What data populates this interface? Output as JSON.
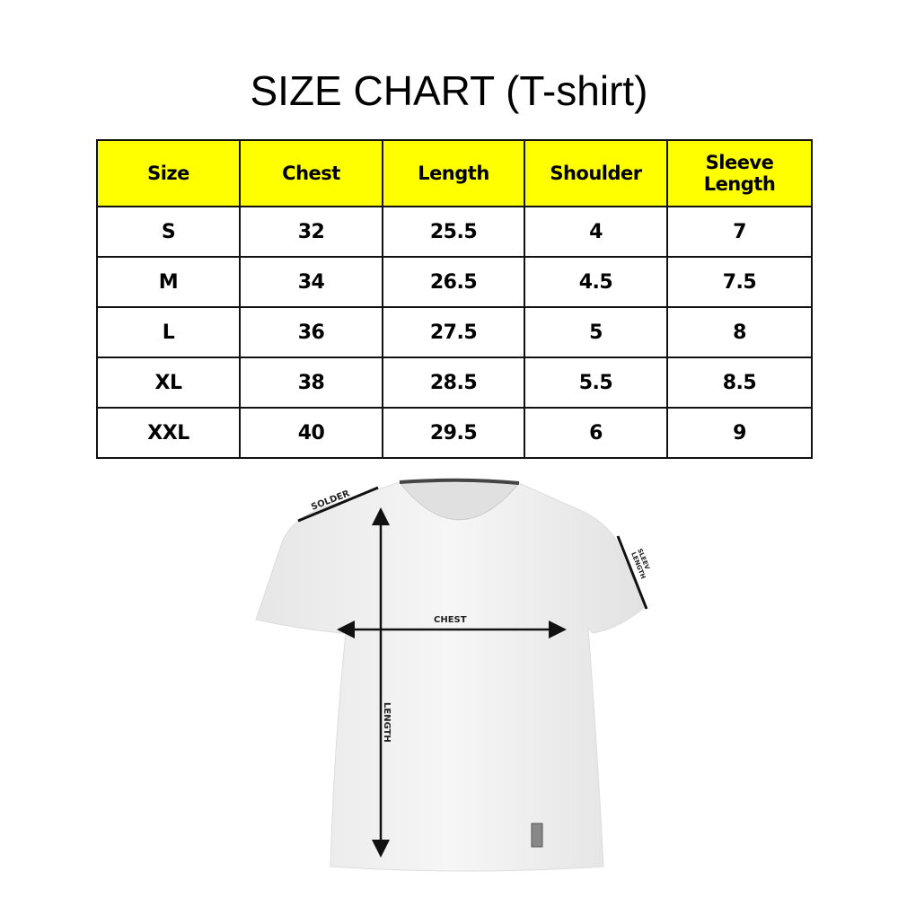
{
  "title": "SIZE CHART (T-shirt)",
  "table": {
    "headers": [
      "Size",
      "Chest",
      "Length",
      "Shoulder",
      "Sleeve Length"
    ],
    "rows": [
      [
        "S",
        "32",
        "25.5",
        "4",
        "7"
      ],
      [
        "M",
        "34",
        "26.5",
        "4.5",
        "7.5"
      ],
      [
        "L",
        "36",
        "27.5",
        "5",
        "8"
      ],
      [
        "XL",
        "38",
        "28.5",
        "5.5",
        "8.5"
      ],
      [
        "XXL",
        "40",
        "29.5",
        "6",
        "9"
      ]
    ]
  },
  "diagram": {
    "shoulder": "SOLDER",
    "chest": "CHEST",
    "length": "LENGTH",
    "sleeve_line1": "SLEEV",
    "sleeve_line2": "LENGTH"
  },
  "colors": {
    "header_bg": "#ffff00"
  }
}
